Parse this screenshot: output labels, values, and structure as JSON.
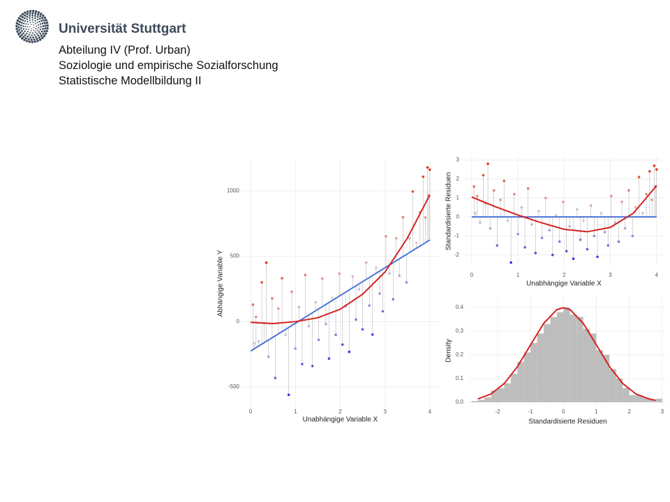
{
  "header": {
    "org": "Universität Stuttgart",
    "lines": [
      "Abteilung IV (Prof. Urban)",
      "Soziologie und empirische Sozialforschung",
      "Statistische Modellbildung II"
    ]
  },
  "chart_data": [
    {
      "type": "scatter",
      "xlabel": "Unabhängige Variable X",
      "ylabel": "Abhängige Variable Y",
      "xlim": [
        -0.22,
        4.22
      ],
      "ylim": [
        -660,
        1245
      ],
      "xticks": [
        0,
        1,
        2,
        3,
        4
      ],
      "yticks": [
        -500,
        0,
        500,
        1000
      ],
      "grid": true,
      "point_colors": [
        "#3b22e0",
        "#d8d2d2",
        "#e22a10"
      ],
      "x": [
        0.05,
        0.08,
        0.12,
        0.18,
        0.25,
        0.3,
        0.35,
        0.4,
        0.48,
        0.55,
        0.62,
        0.7,
        0.78,
        0.85,
        0.92,
        1.0,
        1.08,
        1.15,
        1.22,
        1.3,
        1.38,
        1.45,
        1.52,
        1.6,
        1.68,
        1.75,
        1.82,
        1.9,
        1.98,
        2.05,
        2.12,
        2.2,
        2.28,
        2.35,
        2.42,
        2.5,
        2.58,
        2.65,
        2.72,
        2.8,
        2.88,
        2.95,
        3.02,
        3.1,
        3.18,
        3.25,
        3.32,
        3.4,
        3.48,
        3.55,
        3.62,
        3.7,
        3.78,
        3.85,
        3.9,
        3.95,
        3.98,
        4.0
      ],
      "values": [
        130,
        -165,
        37,
        -151,
        301,
        -11,
        451,
        -269,
        178,
        -431,
        100,
        332,
        -102,
        -560,
        229,
        -206,
        112,
        -325,
        357,
        -35,
        -340,
        148,
        -139,
        330,
        -19,
        -283,
        183,
        -101,
        368,
        -176,
        118,
        -231,
        346,
        16,
        246,
        -59,
        452,
        123,
        -99,
        413,
        215,
        79,
        653,
        369,
        171,
        638,
        352,
        799,
        300,
        637,
        996,
        604,
        836,
        1109,
        797,
        1180,
        965,
        1163
      ],
      "fits": [
        {
          "color": "#4a72d8",
          "x": [
            0,
            4
          ],
          "values": [
            -225,
            625
          ]
        },
        {
          "color": "#d42020",
          "x": [
            0,
            0.5,
            1,
            1.5,
            2,
            2.5,
            3,
            3.5,
            4
          ],
          "values": [
            -5,
            -15,
            0,
            30,
            95,
            210,
            380,
            640,
            970
          ]
        }
      ]
    },
    {
      "type": "scatter",
      "xlabel": "Unabhängige Variable X",
      "ylabel": "Standardisierte Residuen",
      "xlim": [
        -0.18,
        4.17
      ],
      "ylim": [
        -2.6,
        3.2
      ],
      "xticks": [
        0,
        1,
        2,
        3,
        4
      ],
      "yticks": [
        -2,
        -1,
        0,
        1,
        2,
        3
      ],
      "grid": true,
      "point_colors": [
        "#3b22e0",
        "#d8d2d2",
        "#e22a10"
      ],
      "x": [
        0.05,
        0.08,
        0.12,
        0.18,
        0.25,
        0.3,
        0.35,
        0.4,
        0.48,
        0.55,
        0.62,
        0.7,
        0.78,
        0.85,
        0.92,
        1.0,
        1.08,
        1.15,
        1.22,
        1.3,
        1.38,
        1.45,
        1.52,
        1.6,
        1.68,
        1.75,
        1.82,
        1.9,
        1.98,
        2.05,
        2.12,
        2.2,
        2.28,
        2.35,
        2.42,
        2.5,
        2.58,
        2.65,
        2.72,
        2.8,
        2.88,
        2.95,
        3.02,
        3.1,
        3.18,
        3.25,
        3.32,
        3.4,
        3.48,
        3.55,
        3.62,
        3.7,
        3.78,
        3.85,
        3.9,
        3.95,
        3.98,
        4.0
      ],
      "values": [
        1.6,
        0.2,
        1.1,
        -0.3,
        2.2,
        0.7,
        2.8,
        -0.6,
        1.4,
        -1.5,
        0.9,
        1.9,
        -0.2,
        -2.4,
        1.2,
        -0.9,
        0.5,
        -1.6,
        1.5,
        -0.4,
        -1.9,
        0.3,
        -1.1,
        1.0,
        -0.7,
        -2.0,
        0.1,
        -1.3,
        0.8,
        -1.8,
        -0.5,
        -2.2,
        0.4,
        -1.2,
        -0.2,
        -1.7,
        0.6,
        -1.0,
        -2.1,
        0.2,
        -0.8,
        -1.5,
        1.1,
        -0.3,
        -1.3,
        0.8,
        -0.6,
        1.4,
        -1.0,
        0.5,
        2.1,
        0.2,
        1.2,
        2.4,
        0.9,
        2.7,
        1.6,
        2.5
      ],
      "fits": [
        {
          "color": "#4a72d8",
          "x": [
            0,
            4
          ],
          "values": [
            0,
            0
          ]
        },
        {
          "color": "#d42020",
          "x": [
            0,
            0.5,
            1,
            1.5,
            2,
            2.5,
            3,
            3.5,
            4
          ],
          "values": [
            1.05,
            0.55,
            0.1,
            -0.3,
            -0.65,
            -0.78,
            -0.55,
            0.2,
            1.65
          ]
        }
      ]
    },
    {
      "type": "histogram",
      "xlabel": "Standardisierte Residuen",
      "ylabel": "Density",
      "xlim": [
        -2.87,
        3.13
      ],
      "ylim": [
        -0.015,
        0.45
      ],
      "xticks": [
        -2,
        -1,
        0,
        1,
        2,
        3
      ],
      "yticks": [
        {
          "value": 0,
          "label": "0.0"
        },
        0.1,
        0.2,
        0.3,
        0.4
      ],
      "grid": true,
      "color": "#bdbdbd",
      "bins": [
        -2.8,
        -2.6,
        -2.4,
        -2.2,
        -2.0,
        -1.8,
        -1.6,
        -1.4,
        -1.2,
        -1.0,
        -0.8,
        -0.6,
        -0.4,
        -0.2,
        0.0,
        0.2,
        0.4,
        0.6,
        0.8,
        1.0,
        1.2,
        1.4,
        1.6,
        1.8,
        2.0,
        2.2,
        2.4,
        2.6,
        2.8,
        3.0
      ],
      "values": [
        0.005,
        0.01,
        0.02,
        0.05,
        0.06,
        0.08,
        0.12,
        0.17,
        0.21,
        0.25,
        0.29,
        0.33,
        0.36,
        0.38,
        0.4,
        0.37,
        0.36,
        0.31,
        0.29,
        0.22,
        0.2,
        0.14,
        0.1,
        0.06,
        0.03,
        0.03,
        0.02,
        0.01,
        0.015
      ],
      "fits": [
        {
          "color": "#d42020",
          "x": [
            -2.6,
            -2.2,
            -1.8,
            -1.4,
            -1.0,
            -0.6,
            -0.2,
            0,
            0.2,
            0.6,
            1.0,
            1.4,
            1.8,
            2.2,
            2.6,
            2.8
          ],
          "values": [
            0.014,
            0.035,
            0.079,
            0.15,
            0.242,
            0.333,
            0.391,
            0.399,
            0.391,
            0.333,
            0.242,
            0.15,
            0.079,
            0.035,
            0.014,
            0.008
          ]
        }
      ]
    }
  ]
}
